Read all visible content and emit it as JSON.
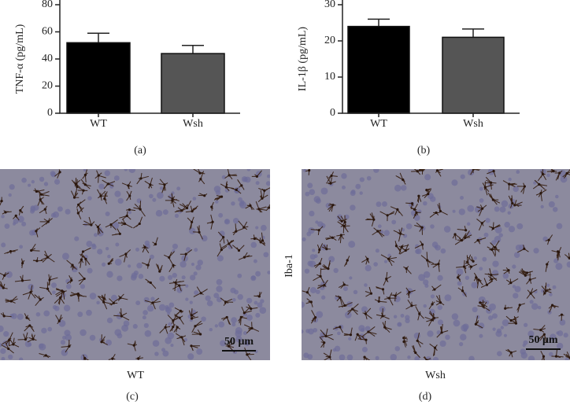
{
  "chart_data": [
    {
      "type": "bar",
      "y_label": "TNF-α (pg/mL)",
      "categories": [
        "WT",
        "Wsh"
      ],
      "values": [
        52,
        44
      ],
      "errors": [
        7,
        6
      ],
      "colors": [
        "#000000",
        "#555555"
      ],
      "ylim": [
        0,
        80
      ],
      "yticks": [
        0,
        20,
        40,
        60,
        80
      ],
      "panel_label": "(a)"
    },
    {
      "type": "bar",
      "y_label": "IL-1β (pg/mL)",
      "categories": [
        "WT",
        "Wsh"
      ],
      "values": [
        24,
        21
      ],
      "errors": [
        2,
        2.3
      ],
      "colors": [
        "#000000",
        "#555555"
      ],
      "ylim": [
        0,
        30
      ],
      "yticks": [
        0,
        10,
        20,
        30
      ],
      "panel_label": "(b)"
    }
  ],
  "images": [
    {
      "caption": "WT",
      "scale_bar": "50 μm",
      "panel_label": "(c)"
    },
    {
      "caption": "Wsh",
      "scale_bar": "50 μm",
      "panel_label": "(d)",
      "stain": "Iba-1"
    }
  ]
}
